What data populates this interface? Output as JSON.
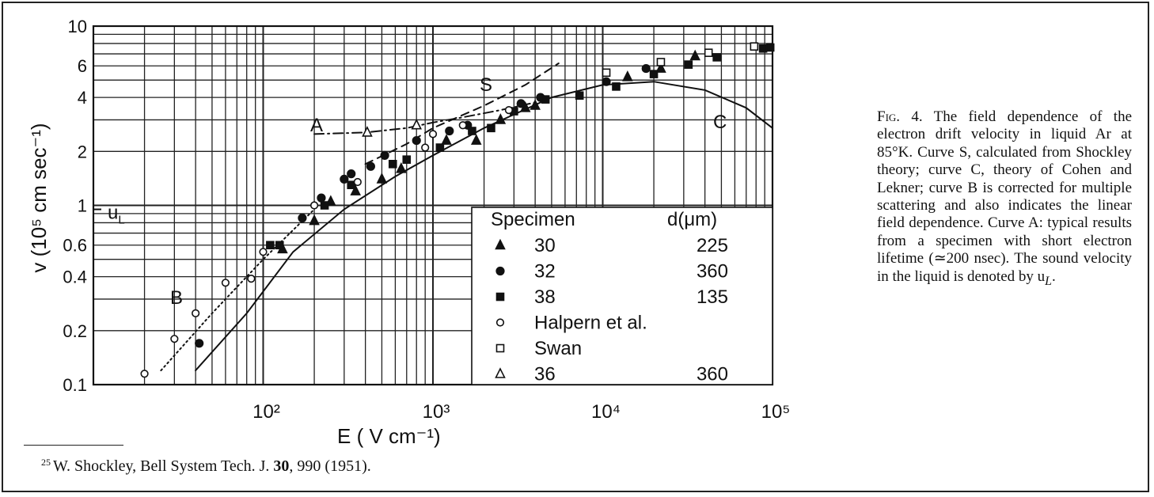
{
  "chart_data": {
    "type": "scatter",
    "xscale": "log",
    "yscale": "log",
    "xlim": [
      10,
      100000
    ],
    "ylim": [
      0.1,
      10
    ],
    "xlabel": "E     ( V cm⁻¹)",
    "ylabel": "v   (10⁵ cm sec⁻¹)",
    "x_ticks": [
      "10²",
      "10³",
      "10⁴",
      "10⁵"
    ],
    "y_ticks": [
      "10",
      "6",
      "4",
      "2",
      "1",
      "0.6",
      "0.4",
      "0.2",
      "0.1"
    ],
    "grid": true,
    "ul_label": "u",
    "ul_sub": "L",
    "ul_value": 0.95,
    "curve_labels": {
      "A": "A",
      "B": "B",
      "C": "C",
      "S": "S"
    },
    "curves": [
      {
        "name": "S",
        "style": "dashed",
        "x": [
          400,
          700,
          1000,
          2000,
          3500,
          5500
        ],
        "y": [
          1.7,
          2.2,
          2.7,
          3.6,
          4.7,
          6.2
        ]
      },
      {
        "name": "C",
        "style": "solid",
        "x": [
          40,
          80,
          150,
          300,
          600,
          1000,
          2000,
          5000,
          10000,
          20000,
          40000,
          70000,
          100000
        ],
        "y": [
          0.12,
          0.25,
          0.55,
          0.95,
          1.45,
          1.9,
          2.7,
          4.0,
          4.7,
          4.9,
          4.4,
          3.5,
          2.7
        ]
      },
      {
        "name": "B",
        "style": "dotted",
        "x": [
          25,
          50,
          100,
          200
        ],
        "y": [
          0.12,
          0.25,
          0.5,
          0.95
        ]
      },
      {
        "name": "A",
        "style": "dashdot",
        "x": [
          200,
          400,
          700,
          1000,
          1500,
          2500,
          4000
        ],
        "y": [
          2.5,
          2.55,
          2.7,
          2.9,
          3.1,
          3.4,
          3.75
        ]
      }
    ],
    "series": [
      {
        "name": "30",
        "d": "225",
        "marker": "triangle-filled",
        "points": [
          [
            130,
            0.57
          ],
          [
            200,
            0.82
          ],
          [
            250,
            1.05
          ],
          [
            350,
            1.2
          ],
          [
            500,
            1.4
          ],
          [
            650,
            1.6
          ],
          [
            1200,
            2.3
          ],
          [
            1800,
            2.3
          ],
          [
            2500,
            3.0
          ],
          [
            3500,
            3.5
          ],
          [
            4000,
            3.6
          ],
          [
            14000,
            5.2
          ],
          [
            22000,
            5.8
          ],
          [
            35000,
            6.8
          ]
        ]
      },
      {
        "name": "32",
        "d": "360",
        "marker": "circle-filled",
        "points": [
          [
            42,
            0.17
          ],
          [
            170,
            0.85
          ],
          [
            220,
            1.1
          ],
          [
            300,
            1.4
          ],
          [
            330,
            1.5
          ],
          [
            430,
            1.65
          ],
          [
            520,
            1.9
          ],
          [
            800,
            2.3
          ],
          [
            1250,
            2.6
          ],
          [
            1600,
            2.8
          ],
          [
            3300,
            3.7
          ],
          [
            4300,
            4.0
          ],
          [
            10500,
            4.9
          ],
          [
            18000,
            5.8
          ]
        ]
      },
      {
        "name": "38",
        "d": "135",
        "marker": "square-filled",
        "points": [
          [
            110,
            0.6
          ],
          [
            125,
            0.6
          ],
          [
            230,
            1.0
          ],
          [
            330,
            1.3
          ],
          [
            580,
            1.7
          ],
          [
            700,
            1.8
          ],
          [
            1100,
            2.1
          ],
          [
            1700,
            2.6
          ],
          [
            2200,
            2.7
          ],
          [
            3000,
            3.35
          ],
          [
            4600,
            3.9
          ],
          [
            7300,
            4.1
          ],
          [
            12000,
            4.6
          ],
          [
            20000,
            5.4
          ],
          [
            32000,
            6.1
          ],
          [
            47000,
            6.7
          ],
          [
            88000,
            7.5
          ],
          [
            97000,
            7.6
          ]
        ]
      },
      {
        "name": "Halpern et al.",
        "d": "",
        "marker": "circle-open",
        "points": [
          [
            20,
            0.115
          ],
          [
            30,
            0.18
          ],
          [
            40,
            0.25
          ],
          [
            60,
            0.37
          ],
          [
            85,
            0.39
          ],
          [
            100,
            0.55
          ],
          [
            200,
            1.0
          ],
          [
            360,
            1.35
          ],
          [
            900,
            2.1
          ],
          [
            1000,
            2.5
          ],
          [
            1500,
            2.8
          ],
          [
            2800,
            3.4
          ]
        ]
      },
      {
        "name": "Swan",
        "d": "",
        "marker": "square-open",
        "points": [
          [
            10500,
            5.5
          ],
          [
            22000,
            6.3
          ],
          [
            42000,
            7.1
          ],
          [
            78000,
            7.7
          ]
        ]
      },
      {
        "name": "36",
        "d": "360",
        "marker": "triangle-open",
        "points": [
          [
            410,
            2.55
          ],
          [
            800,
            2.8
          ]
        ]
      }
    ],
    "legend": {
      "header_specimen": "Specimen",
      "header_d": "d(μm)"
    }
  },
  "caption": {
    "lead": "Fig. 4.",
    "body": " The field dependence of the electron drift velocity in liquid Ar at 85°K. Curve S, calculated from Shockley theory; curve C, theory of Cohen and Lekner; curve B is corrected for multiple scattering and also indicates the linear field dependence. Curve A: typical results from a specimen with short electron lifetime (≃200 nsec). The sound velocity in the liquid is denoted by u",
    "body_sub": "L",
    "body_end": "."
  },
  "footnote": {
    "mark": "25",
    "text": "W. Shockley, Bell System Tech. J. ",
    "volume": "30",
    "rest": ", 990 (1951)."
  }
}
